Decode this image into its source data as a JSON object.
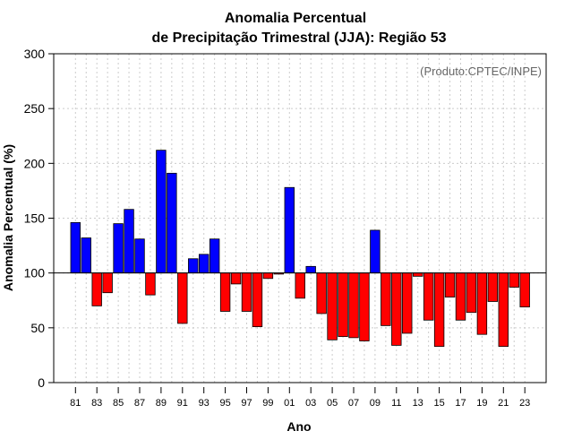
{
  "chart_data": {
    "type": "bar",
    "title_line1": "Anomalia Percentual",
    "title_line2": "de Precipitação Trimestral (JJA): Região 53",
    "xlabel": "Ano",
    "ylabel": "Anomalia Percentual (%)",
    "source_note": "(Produto:CPTEC/INPE)",
    "ylim": [
      0,
      300
    ],
    "yticks": [
      0,
      50,
      100,
      150,
      200,
      250,
      300
    ],
    "baseline": 100,
    "grid": true,
    "years": [
      "81",
      "82",
      "83",
      "84",
      "85",
      "86",
      "87",
      "88",
      "89",
      "90",
      "91",
      "92",
      "93",
      "94",
      "95",
      "96",
      "97",
      "98",
      "99",
      "00",
      "01",
      "02",
      "03",
      "04",
      "05",
      "06",
      "07",
      "08",
      "09",
      "10",
      "11",
      "12",
      "13",
      "14",
      "15",
      "16",
      "17",
      "18",
      "19",
      "20",
      "21",
      "22",
      "23"
    ],
    "xtick_labels": [
      "81",
      "83",
      "85",
      "87",
      "89",
      "91",
      "93",
      "95",
      "97",
      "99",
      "01",
      "03",
      "05",
      "07",
      "09",
      "11",
      "13",
      "15",
      "17",
      "19",
      "21",
      "23"
    ],
    "values": [
      146,
      132,
      70,
      82,
      145,
      158,
      131,
      80,
      212,
      191,
      54,
      113,
      117,
      131,
      65,
      90,
      65,
      51,
      95,
      99,
      178,
      77,
      106,
      63,
      39,
      42,
      41,
      38,
      139,
      52,
      34,
      45,
      97,
      57,
      33,
      78,
      57,
      64,
      44,
      74,
      33,
      87,
      69
    ],
    "colors": {
      "above": "#0000ff",
      "below": "#ff0000",
      "grid": "#cccccc",
      "axis": "#000000"
    }
  }
}
